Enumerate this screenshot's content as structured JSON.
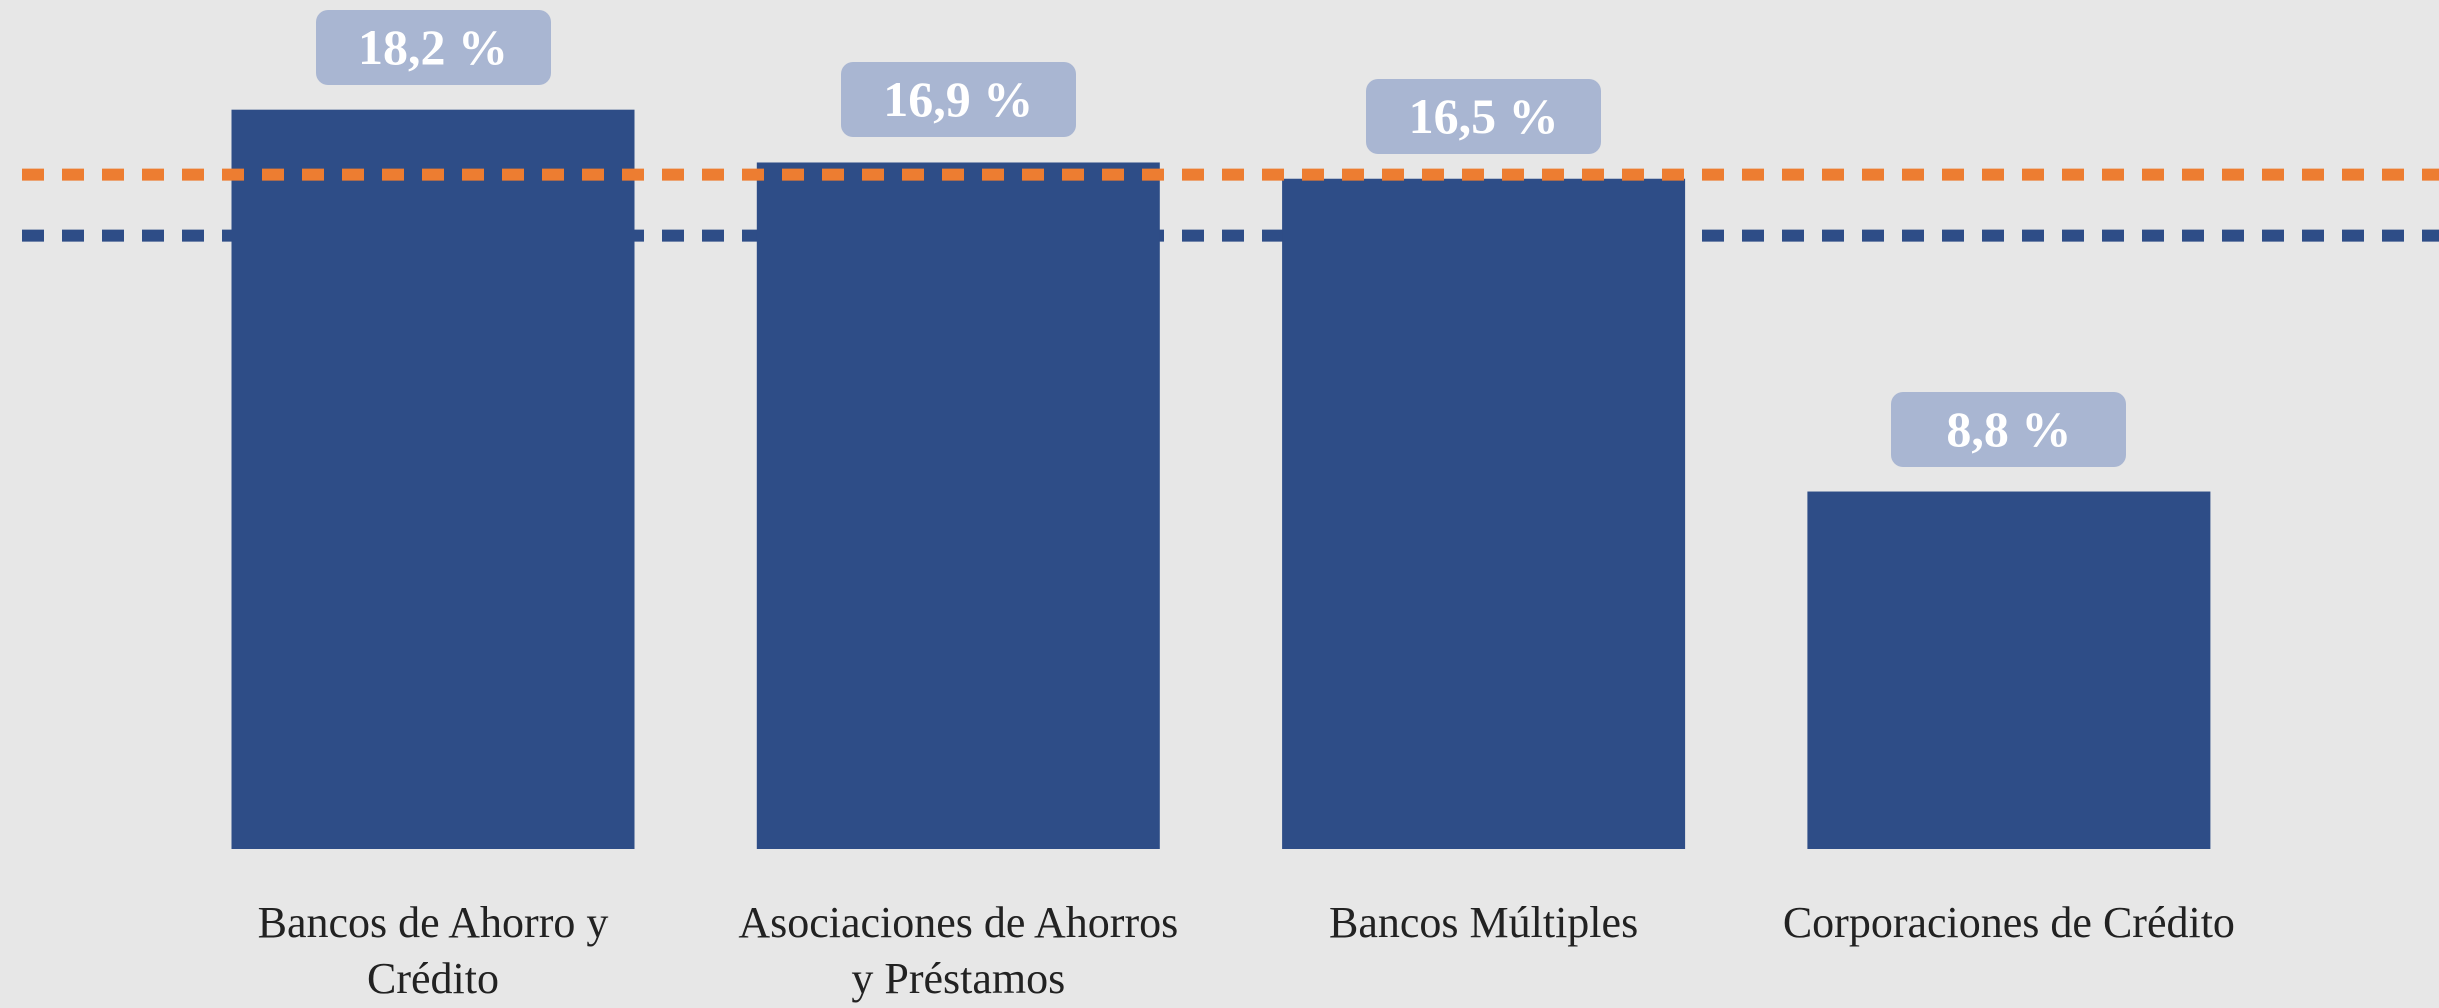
{
  "chart_data": {
    "type": "bar",
    "categories": [
      "Bancos de Ahorro y Crédito",
      "Asociaciones de Ahorros y Préstamos",
      "Bancos Múltiples",
      "Corporaciones de Crédito"
    ],
    "values": [
      18.2,
      16.9,
      16.5,
      8.8
    ],
    "value_labels": [
      "18,2 %",
      "16,9 %",
      "16,5 %",
      "8,8 %"
    ],
    "color": "#2e4d87",
    "label_color": "#a9b6d2",
    "ylim": [
      0,
      20.9
    ],
    "reference_lines": [
      {
        "value": 15.1,
        "color": "#2e4d87"
      },
      {
        "value": 16.6,
        "color": "#ed7d31"
      }
    ]
  }
}
